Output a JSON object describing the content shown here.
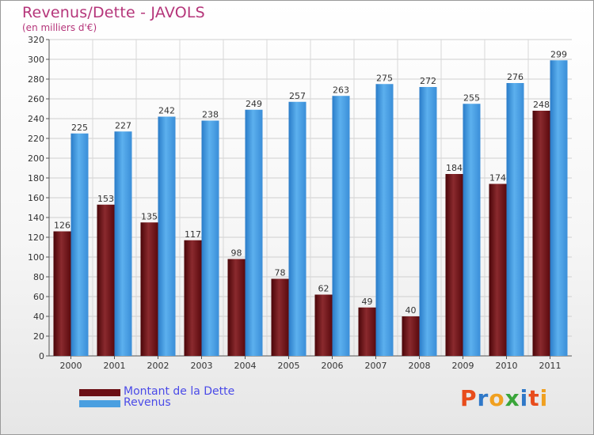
{
  "header": {
    "title": "Revenus/Dette - JAVOLS",
    "subtitle": "(en milliers d'€)"
  },
  "legend": {
    "items": [
      {
        "label": "Montant de la Dette",
        "color": "#6b0f14"
      },
      {
        "label": "Revenus",
        "color": "#4a9fe0"
      }
    ]
  },
  "brand": {
    "text": "Proxiti",
    "letter_colors": [
      "#e84c1c",
      "#2f78c8",
      "#f0a020",
      "#3aa53a",
      "#2f78c8",
      "#e84c1c",
      "#f0a020"
    ]
  },
  "chart_data": {
    "type": "bar",
    "categories": [
      "2000",
      "2001",
      "2002",
      "2003",
      "2004",
      "2005",
      "2006",
      "2007",
      "2008",
      "2009",
      "2010",
      "2011"
    ],
    "series": [
      {
        "name": "Montant de la Dette",
        "color": "#6b0f14",
        "values": [
          126,
          153,
          135,
          117,
          98,
          78,
          62,
          49,
          40,
          184,
          174,
          248
        ]
      },
      {
        "name": "Revenus",
        "color": "#4a9fe0",
        "values": [
          225,
          227,
          242,
          238,
          249,
          257,
          263,
          275,
          272,
          255,
          276,
          299
        ]
      }
    ],
    "title": "Revenus/Dette - JAVOLS",
    "subtitle": "(en milliers d'€)",
    "xlabel": "",
    "ylabel": "",
    "ylim": [
      0,
      320
    ],
    "yticks": [
      0,
      20,
      40,
      60,
      80,
      100,
      120,
      140,
      160,
      180,
      200,
      220,
      240,
      260,
      280,
      300,
      320
    ],
    "grid": true,
    "legend_position": "bottom-left"
  }
}
